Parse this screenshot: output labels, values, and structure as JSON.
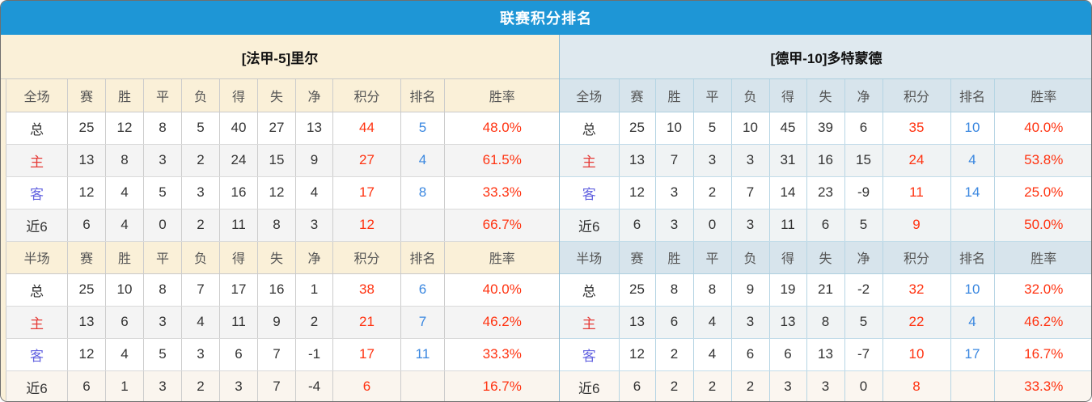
{
  "title": "联赛积分排名",
  "colors": {
    "title_bar_blue": "#1e96d6",
    "left_panel_cream": "#faf0d8",
    "right_panel_blue": "#dfe9ef",
    "value_red": "#ff3311",
    "rank_blue": "#3a87e0",
    "home_label_red": "#e53935",
    "away_label_blue": "#6363e0"
  },
  "columns": {
    "full_label": "全场",
    "half_label": "半场",
    "stats": [
      "赛",
      "胜",
      "平",
      "负",
      "得",
      "失",
      "净",
      "积分",
      "排名",
      "胜率"
    ]
  },
  "teams": [
    {
      "name": "[法甲-5]里尔",
      "full": [
        {
          "label": "总",
          "cells": [
            "25",
            "12",
            "8",
            "5",
            "40",
            "27",
            "13",
            "44",
            "5",
            "48.0%"
          ]
        },
        {
          "label": "主",
          "cells": [
            "13",
            "8",
            "3",
            "2",
            "24",
            "15",
            "9",
            "27",
            "4",
            "61.5%"
          ]
        },
        {
          "label": "客",
          "cells": [
            "12",
            "4",
            "5",
            "3",
            "16",
            "12",
            "4",
            "17",
            "8",
            "33.3%"
          ]
        },
        {
          "label": "近6",
          "cells": [
            "6",
            "4",
            "0",
            "2",
            "11",
            "8",
            "3",
            "12",
            "",
            "66.7%"
          ]
        }
      ],
      "half": [
        {
          "label": "总",
          "cells": [
            "25",
            "10",
            "8",
            "7",
            "17",
            "16",
            "1",
            "38",
            "6",
            "40.0%"
          ]
        },
        {
          "label": "主",
          "cells": [
            "13",
            "6",
            "3",
            "4",
            "11",
            "9",
            "2",
            "21",
            "7",
            "46.2%"
          ]
        },
        {
          "label": "客",
          "cells": [
            "12",
            "4",
            "5",
            "3",
            "6",
            "7",
            "-1",
            "17",
            "11",
            "33.3%"
          ]
        },
        {
          "label": "近6",
          "cells": [
            "6",
            "1",
            "3",
            "2",
            "3",
            "7",
            "-4",
            "6",
            "",
            "16.7%"
          ]
        }
      ]
    },
    {
      "name": "[德甲-10]多特蒙德",
      "full": [
        {
          "label": "总",
          "cells": [
            "25",
            "10",
            "5",
            "10",
            "45",
            "39",
            "6",
            "35",
            "10",
            "40.0%"
          ]
        },
        {
          "label": "主",
          "cells": [
            "13",
            "7",
            "3",
            "3",
            "31",
            "16",
            "15",
            "24",
            "4",
            "53.8%"
          ]
        },
        {
          "label": "客",
          "cells": [
            "12",
            "3",
            "2",
            "7",
            "14",
            "23",
            "-9",
            "11",
            "14",
            "25.0%"
          ]
        },
        {
          "label": "近6",
          "cells": [
            "6",
            "3",
            "0",
            "3",
            "11",
            "6",
            "5",
            "9",
            "",
            "50.0%"
          ]
        }
      ],
      "half": [
        {
          "label": "总",
          "cells": [
            "25",
            "8",
            "8",
            "9",
            "19",
            "21",
            "-2",
            "32",
            "10",
            "32.0%"
          ]
        },
        {
          "label": "主",
          "cells": [
            "13",
            "6",
            "4",
            "3",
            "13",
            "8",
            "5",
            "22",
            "4",
            "46.2%"
          ]
        },
        {
          "label": "客",
          "cells": [
            "12",
            "2",
            "4",
            "6",
            "6",
            "13",
            "-7",
            "10",
            "17",
            "16.7%"
          ]
        },
        {
          "label": "近6",
          "cells": [
            "6",
            "2",
            "2",
            "2",
            "3",
            "3",
            "0",
            "8",
            "",
            "33.3%"
          ]
        }
      ]
    }
  ]
}
